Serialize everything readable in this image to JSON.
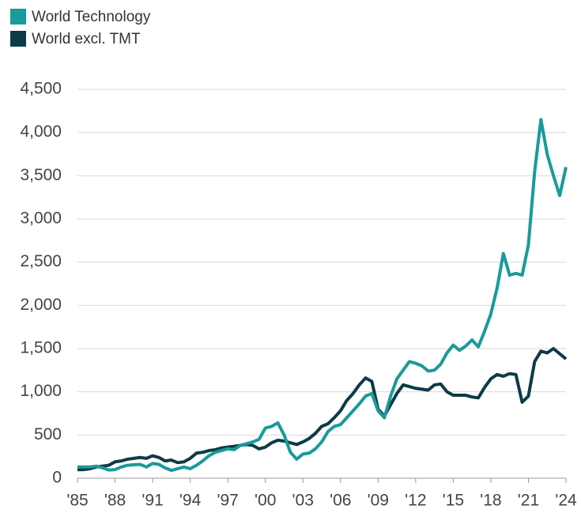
{
  "chart_data": {
    "type": "line",
    "x": [
      1985,
      1985.5,
      1986,
      1986.5,
      1987,
      1987.5,
      1988,
      1988.5,
      1989,
      1989.5,
      1990,
      1990.5,
      1991,
      1991.5,
      1992,
      1992.5,
      1993,
      1993.5,
      1994,
      1994.5,
      1995,
      1995.5,
      1996,
      1996.5,
      1997,
      1997.5,
      1998,
      1998.5,
      1999,
      1999.5,
      2000,
      2000.5,
      2001,
      2001.5,
      2002,
      2002.5,
      2003,
      2003.5,
      2004,
      2004.5,
      2005,
      2005.5,
      2006,
      2006.5,
      2007,
      2007.5,
      2008,
      2008.5,
      2009,
      2009.5,
      2010,
      2010.5,
      2011,
      2011.5,
      2012,
      2012.5,
      2013,
      2013.5,
      2014,
      2014.5,
      2015,
      2015.5,
      2016,
      2016.5,
      2017,
      2017.5,
      2018,
      2018.5,
      2019,
      2019.5,
      2020,
      2020.5,
      2021,
      2021.5,
      2022,
      2022.5,
      2023,
      2023.5,
      2024
    ],
    "series": [
      {
        "name": "World Technology",
        "color": "#1a9a9a",
        "values": [
          130,
          130,
          130,
          140,
          120,
          95,
          100,
          130,
          150,
          155,
          160,
          130,
          170,
          160,
          120,
          90,
          110,
          130,
          110,
          150,
          200,
          260,
          300,
          320,
          340,
          330,
          380,
          400,
          420,
          450,
          580,
          600,
          640,
          500,
          300,
          220,
          280,
          290,
          340,
          420,
          540,
          600,
          620,
          700,
          780,
          860,
          950,
          980,
          780,
          700,
          950,
          1150,
          1250,
          1350,
          1330,
          1300,
          1240,
          1250,
          1320,
          1450,
          1540,
          1480,
          1530,
          1600,
          1520,
          1700,
          1900,
          2200,
          2600,
          2350,
          2370,
          2350,
          2700,
          3550,
          4150,
          3750,
          3500,
          3270,
          3600
        ]
      },
      {
        "name": "World excl. TMT",
        "color": "#0d3b47",
        "values": [
          100,
          100,
          110,
          130,
          140,
          150,
          190,
          200,
          220,
          230,
          240,
          230,
          260,
          240,
          200,
          210,
          180,
          190,
          230,
          290,
          300,
          320,
          330,
          350,
          360,
          370,
          380,
          390,
          380,
          340,
          360,
          410,
          440,
          430,
          410,
          390,
          420,
          460,
          520,
          600,
          630,
          700,
          780,
          900,
          980,
          1080,
          1160,
          1120,
          800,
          720,
          850,
          980,
          1080,
          1060,
          1040,
          1030,
          1020,
          1080,
          1090,
          1000,
          960,
          960,
          960,
          940,
          930,
          1050,
          1150,
          1200,
          1180,
          1210,
          1200,
          880,
          950,
          1350,
          1470,
          1450,
          1500,
          1440,
          1380
        ]
      }
    ],
    "xlim": [
      1985,
      2024
    ],
    "xticks": [
      {
        "value": 1985,
        "label": "'85"
      },
      {
        "value": 1988,
        "label": "'88"
      },
      {
        "value": 1991,
        "label": "'91"
      },
      {
        "value": 1994,
        "label": "'94"
      },
      {
        "value": 1997,
        "label": "'97"
      },
      {
        "value": 2000,
        "label": "'00"
      },
      {
        "value": 2003,
        "label": "'03"
      },
      {
        "value": 2006,
        "label": "'06"
      },
      {
        "value": 2009,
        "label": "'09"
      },
      {
        "value": 2012,
        "label": "'12"
      },
      {
        "value": 2015,
        "label": "'15"
      },
      {
        "value": 2018,
        "label": "'18"
      },
      {
        "value": 2021,
        "label": "'21"
      },
      {
        "value": 2024,
        "label": "'24"
      }
    ],
    "ylim": [
      0,
      4500
    ],
    "yticks": [
      0,
      500,
      {
        "value": 1000,
        "label": "1,000"
      },
      {
        "value": 1500,
        "label": "1,500"
      },
      {
        "value": 2000,
        "label": "2,000"
      },
      {
        "value": 2500,
        "label": "2,500"
      },
      {
        "value": 3000,
        "label": "3,000"
      },
      {
        "value": 3500,
        "label": "3,500"
      },
      {
        "value": 4000,
        "label": "4,000"
      },
      {
        "value": 4500,
        "label": "4,500"
      }
    ],
    "grid": true,
    "legend": "top-left"
  }
}
